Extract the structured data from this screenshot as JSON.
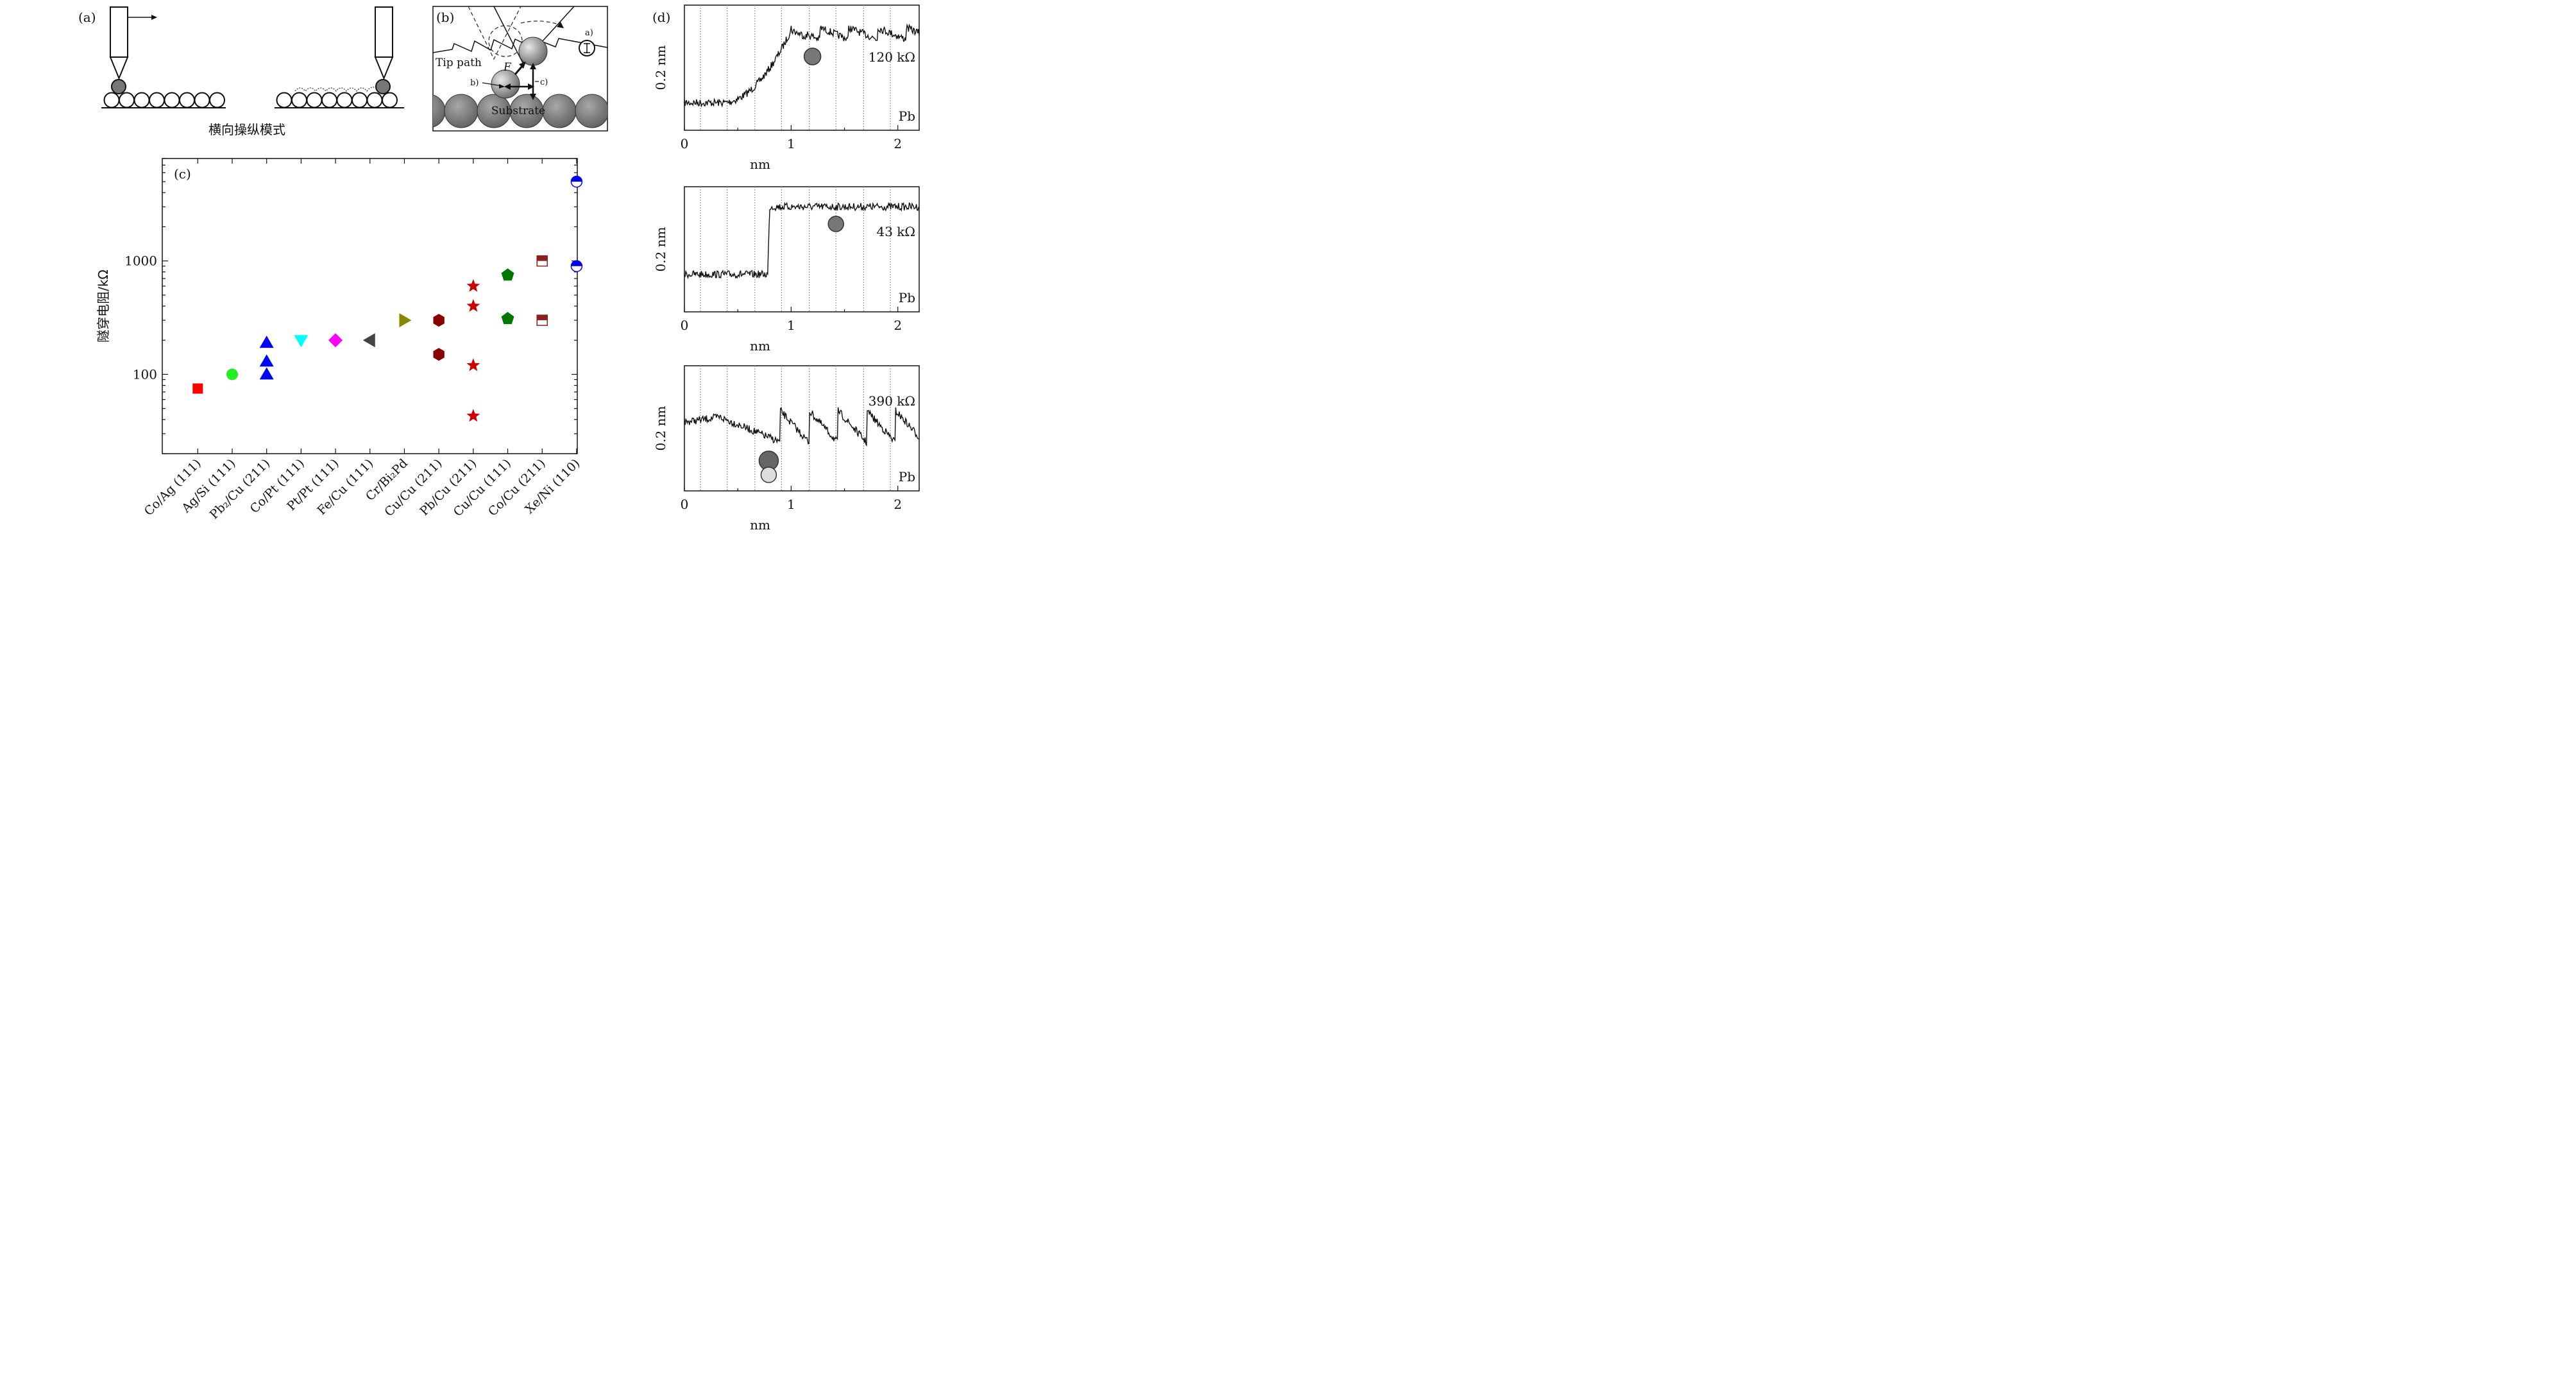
{
  "panel_a": {
    "label": "(a)",
    "caption": "横向操纵模式"
  },
  "panel_b": {
    "label": "(b)",
    "tip_path": "Tip path",
    "force": "F",
    "substrate": "Substrate",
    "annot_a": "a)",
    "annot_b": "b)",
    "annot_c": "c)"
  },
  "panel_c": {
    "label": "(c)",
    "chart_data": {
      "type": "scatter",
      "ylabel": "隧穿电阻/kΩ",
      "yscale": "log",
      "ylim": [
        20,
        8000
      ],
      "ytick_labels": [
        "100",
        "1000"
      ],
      "categories": [
        "Co/Ag (111)",
        "Ag/Si (111)",
        "Pb₂/Cu (211)",
        "Co/Pt (111)",
        "Pt/Pt (111)",
        "Fe/Cu (111)",
        "Cr/Bi₂Pd",
        "Cu/Cu (211)",
        "Pb/Cu (211)",
        "Cu/Cu (111)",
        "Co/Cu (211)",
        "Xe/Ni (110)"
      ],
      "points": [
        {
          "category": "Co/Ag (111)",
          "marker": "square",
          "color": "#ff0000",
          "values": [
            75
          ]
        },
        {
          "category": "Ag/Si (111)",
          "marker": "circle",
          "color": "#22ee22",
          "values": [
            100
          ]
        },
        {
          "category": "Pb₂/Cu (211)",
          "marker": "triangle-up",
          "color": "#0000ff",
          "values": [
            100,
            130,
            190
          ]
        },
        {
          "category": "Co/Pt (111)",
          "marker": "triangle-down",
          "color": "#00ffff",
          "values": [
            200
          ]
        },
        {
          "category": "Pt/Pt (111)",
          "marker": "diamond",
          "color": "#ff00ff",
          "values": [
            200
          ]
        },
        {
          "category": "Fe/Cu (111)",
          "marker": "triangle-left",
          "color": "#444444",
          "values": [
            200
          ]
        },
        {
          "category": "Cr/Bi₂Pd",
          "marker": "triangle-right",
          "color": "#888800",
          "values": [
            300
          ]
        },
        {
          "category": "Cu/Cu (211)",
          "marker": "hexagon",
          "color": "#880000",
          "values": [
            150,
            300
          ]
        },
        {
          "category": "Pb/Cu (211)",
          "marker": "star",
          "color": "#cc0000",
          "values": [
            43,
            120,
            400,
            600
          ]
        },
        {
          "category": "Cu/Cu (111)",
          "marker": "pentagon",
          "color": "#007700",
          "values": [
            310,
            750
          ]
        },
        {
          "category": "Co/Cu (211)",
          "marker": "half-square",
          "color": "#882222",
          "values": [
            300,
            1000
          ]
        },
        {
          "category": "Xe/Ni (110)",
          "marker": "half-circle",
          "color": "#0000ee",
          "values": [
            900,
            5000
          ]
        }
      ]
    }
  },
  "panel_d": {
    "label": "(d)",
    "ylabel": "0.2 nm",
    "xlabel": "nm",
    "xtick_labels": [
      "0",
      "1",
      "2"
    ],
    "material": "Pb",
    "traces": [
      {
        "resistance": "120 kΩ"
      },
      {
        "resistance": "43 kΩ"
      },
      {
        "resistance": "390 kΩ"
      }
    ]
  }
}
